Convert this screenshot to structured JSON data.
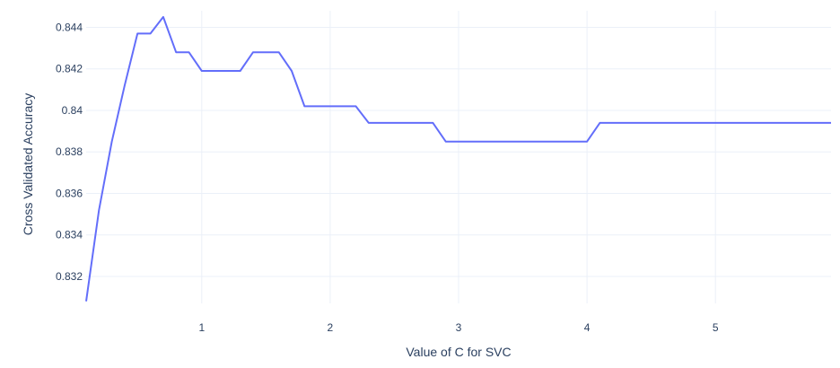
{
  "chart_data": {
    "type": "line",
    "title": "",
    "xlabel": "Value of C for SVC",
    "ylabel": "Cross Validated Accuracy",
    "xlim": [
      0.1,
      5.9
    ],
    "ylim": [
      0.8307,
      0.8448
    ],
    "x_ticks": [
      1,
      2,
      3,
      4,
      5
    ],
    "x_tick_labels": [
      "1",
      "2",
      "3",
      "4",
      "5"
    ],
    "y_ticks": [
      0.832,
      0.834,
      0.836,
      0.838,
      0.84,
      0.842,
      0.844
    ],
    "y_tick_labels": [
      "0.832",
      "0.834",
      "0.836",
      "0.838",
      "0.84",
      "0.842",
      "0.844"
    ],
    "grid": true,
    "legend": "none",
    "colors": {
      "line": "#636efa",
      "grid": "#ebf0f8",
      "text": "#2a3f5f"
    },
    "series": [
      {
        "x": [
          0.1,
          0.2,
          0.3,
          0.4,
          0.5,
          0.6,
          0.7,
          0.8,
          0.9,
          1.0,
          1.1,
          1.2,
          1.3,
          1.4,
          1.5,
          1.6,
          1.7,
          1.8,
          1.9,
          2.0,
          2.1,
          2.2,
          2.3,
          2.4,
          2.5,
          2.6,
          2.7,
          2.8,
          2.9,
          3.0,
          3.1,
          3.2,
          3.3,
          3.4,
          3.5,
          3.6,
          3.7,
          3.8,
          3.9,
          4.0,
          4.1,
          4.2,
          4.3,
          4.4,
          4.5,
          4.6,
          4.7,
          4.8,
          4.9,
          5.0,
          5.1,
          5.2,
          5.3,
          5.4,
          5.5,
          5.6,
          5.7,
          5.8,
          5.9
        ],
        "y": [
          0.8308,
          0.8352,
          0.8385,
          0.8412,
          0.8437,
          0.8437,
          0.8445,
          0.8428,
          0.8428,
          0.8419,
          0.8419,
          0.8419,
          0.8419,
          0.8428,
          0.8428,
          0.8428,
          0.8419,
          0.8402,
          0.8402,
          0.8402,
          0.8402,
          0.8402,
          0.8394,
          0.8394,
          0.8394,
          0.8394,
          0.8394,
          0.8394,
          0.8385,
          0.8385,
          0.8385,
          0.8385,
          0.8385,
          0.8385,
          0.8385,
          0.8385,
          0.8385,
          0.8385,
          0.8385,
          0.8385,
          0.8394,
          0.8394,
          0.8394,
          0.8394,
          0.8394,
          0.8394,
          0.8394,
          0.8394,
          0.8394,
          0.8394,
          0.8394,
          0.8394,
          0.8394,
          0.8394,
          0.8394,
          0.8394,
          0.8394,
          0.8394,
          0.8394
        ]
      }
    ]
  }
}
